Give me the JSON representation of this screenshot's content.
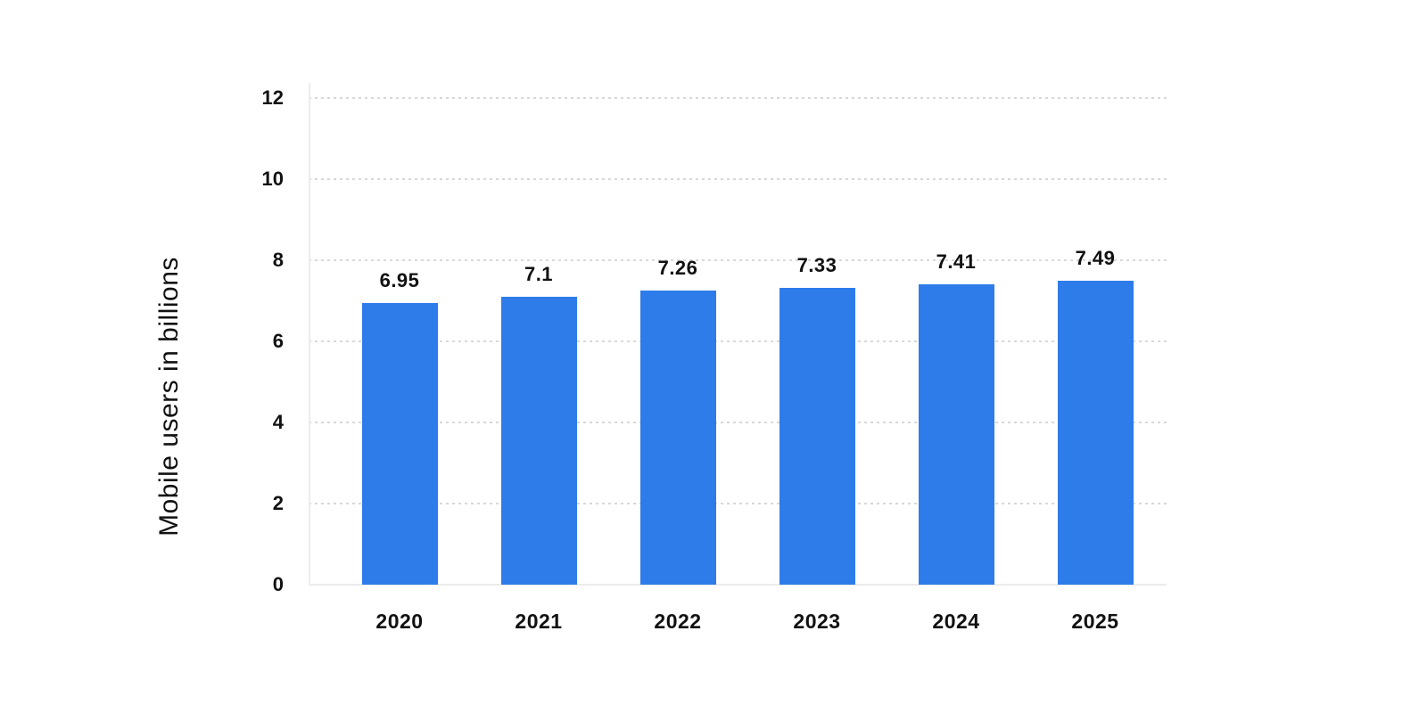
{
  "chart_data": {
    "type": "bar",
    "title": "",
    "xlabel": "",
    "ylabel": "Mobile users in billions",
    "categories": [
      "2020",
      "2021",
      "2022",
      "2023",
      "2024",
      "2025"
    ],
    "values": [
      6.95,
      7.1,
      7.26,
      7.33,
      7.41,
      7.49
    ],
    "bar_labels": [
      "6.95",
      "7.1",
      "7.26",
      "7.33",
      "7.41",
      "7.49"
    ],
    "yticks": [
      0,
      2,
      4,
      6,
      8,
      10,
      12
    ],
    "ylim": [
      0,
      12
    ],
    "grid": "horizontal dotted lines at each y tick, solid light baseline",
    "legend": "none",
    "colors": {
      "bar": "#2e7ce9",
      "text": "#111111",
      "gridline": "#d8d8d8",
      "axis_line": "#ececec"
    }
  }
}
